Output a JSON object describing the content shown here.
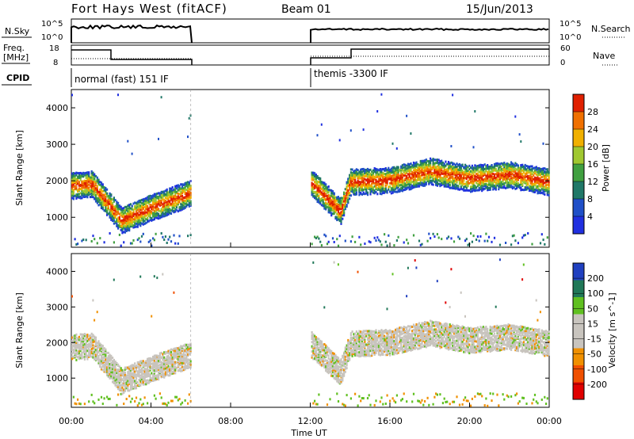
{
  "header": {
    "title": "Fort Hays West (fitACF)",
    "beam": "Beam 01",
    "date": "15/Jun/2013"
  },
  "top_panel": {
    "left_label": "N.Sky",
    "right_label": "N.Search",
    "left_ticks": [
      "10^5",
      "10^0"
    ],
    "right_ticks": [
      "10^5",
      "10^0"
    ]
  },
  "freq_panel": {
    "left_label_line1": "Freq.",
    "left_label_line2": "[MHz]",
    "right_label": "Nave",
    "left_ticks": [
      "18",
      "8"
    ],
    "right_ticks": [
      "60",
      "0"
    ]
  },
  "cpid": {
    "label": "CPID",
    "mode1": "normal (fast) 151 IF",
    "mode2": "themis -3300 IF"
  },
  "colors": {
    "power": [
      "#2030e0",
      "#2050c8",
      "#207868",
      "#40a040",
      "#a0c830",
      "#f0b000",
      "#f07000",
      "#e02000"
    ],
    "velocity": [
      "#e00000",
      "#f05000",
      "#f09000",
      "#c8c4be",
      "#c8c4be",
      "#60c020",
      "#207858",
      "#2040c0"
    ]
  },
  "chart_data": [
    {
      "type": "heatmap",
      "title": "",
      "quantity": "Power",
      "ylabel": "Slant Range [km]",
      "colorbar_label": "Power [dB]",
      "colorbar_ticks": [
        "28",
        "24",
        "20",
        "16",
        "12",
        "8",
        "4"
      ],
      "ylim": [
        180,
        4500
      ],
      "yticks": [
        "4000",
        "3000",
        "2000",
        "1000"
      ],
      "xlim": [
        "00:00",
        "24:00"
      ],
      "data_gaps": [
        [
          "06:00",
          "12:00"
        ]
      ],
      "scatter_band": [
        {
          "t": "00:00",
          "km": 1900
        },
        {
          "t": "01:00",
          "km": 1950
        },
        {
          "t": "02:00",
          "km": 1300
        },
        {
          "t": "02:30",
          "km": 950
        },
        {
          "t": "04:00",
          "km": 1300
        },
        {
          "t": "06:00",
          "km": 1700
        },
        {
          "t": "12:00",
          "km": 2000
        },
        {
          "t": "13:30",
          "km": 1200
        },
        {
          "t": "14:00",
          "km": 2000
        },
        {
          "t": "16:00",
          "km": 2050
        },
        {
          "t": "18:00",
          "km": 2300
        },
        {
          "t": "20:00",
          "km": 2100
        },
        {
          "t": "22:00",
          "km": 2200
        },
        {
          "t": "24:00",
          "km": 2000
        }
      ],
      "power_range_db": [
        0,
        30
      ]
    },
    {
      "type": "heatmap",
      "title": "",
      "quantity": "Velocity",
      "ylabel": "Slant Range [km]",
      "colorbar_label": "Velocity [m s^-1]",
      "colorbar_ticks": [
        "200",
        "100",
        "50",
        "15",
        "-15",
        "-50",
        "-100",
        "-200"
      ],
      "ylim": [
        180,
        4500
      ],
      "yticks": [
        "4000",
        "3000",
        "2000",
        "1000"
      ],
      "xlim": [
        "00:00",
        "24:00"
      ],
      "xticks": [
        "00:00",
        "04:00",
        "08:00",
        "12:00",
        "16:00",
        "20:00",
        "00:00"
      ],
      "xlabel": "Time UT",
      "data_gaps": [
        [
          "06:00",
          "12:00"
        ]
      ]
    }
  ]
}
